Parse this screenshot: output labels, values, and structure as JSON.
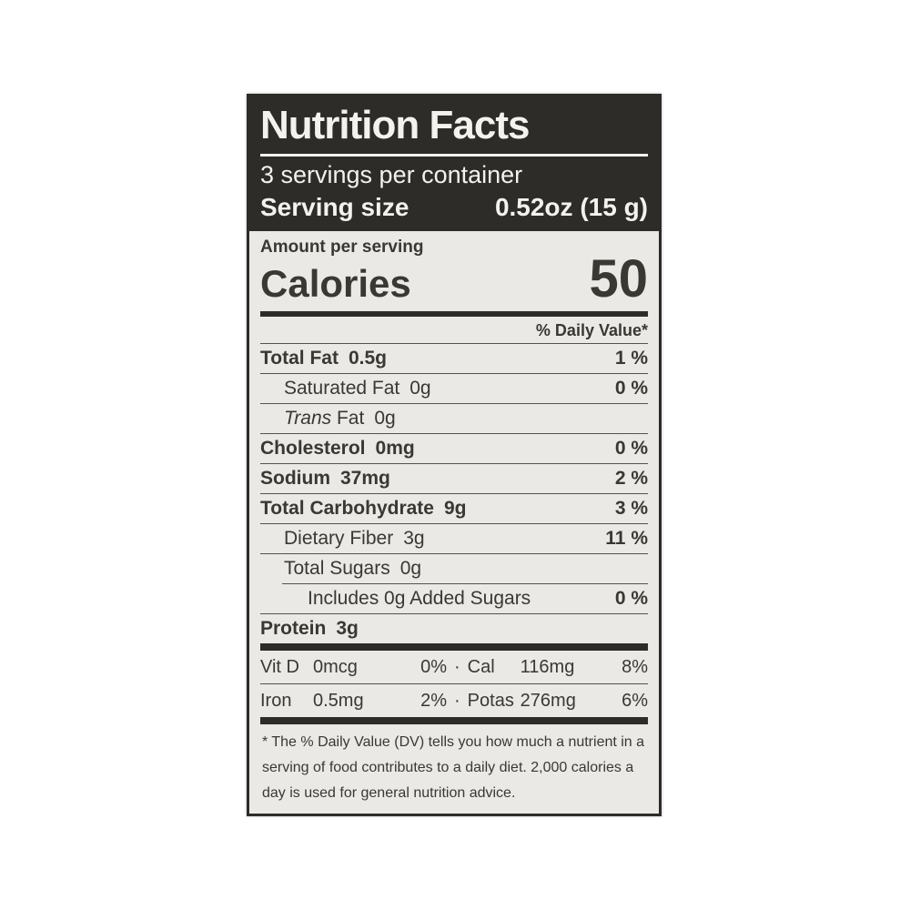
{
  "label": {
    "title": "Nutrition Facts",
    "servings_per_container": "3 servings per container",
    "serving_size_label": "Serving size",
    "serving_size_value": "0.52oz (15 g)",
    "amount_per_serving": "Amount per serving",
    "calories_label": "Calories",
    "calories_value": "50",
    "daily_value_header": "% Daily Value*",
    "rows": [
      {
        "name": "Total Fat",
        "amount": "0.5g",
        "dv": "1 %"
      },
      {
        "name": "Saturated Fat",
        "amount": "0g",
        "dv": "0 %"
      },
      {
        "name_italic": "Trans",
        "name": "Fat",
        "amount": "0g",
        "dv": ""
      },
      {
        "name": "Cholesterol",
        "amount": "0mg",
        "dv": "0 %"
      },
      {
        "name": "Sodium",
        "amount": "37mg",
        "dv": "2 %"
      },
      {
        "name": "Total Carbohydrate",
        "amount": "9g",
        "dv": "3 %"
      },
      {
        "name": "Dietary Fiber",
        "amount": "3g",
        "dv": "11 %"
      },
      {
        "name": "Total Sugars",
        "amount": "0g",
        "dv": ""
      },
      {
        "name": "Includes 0g Added Sugars",
        "amount": "",
        "dv": "0 %"
      },
      {
        "name": "Protein",
        "amount": "3g",
        "dv": ""
      }
    ],
    "bullet": "·",
    "micronutrients": [
      {
        "left": {
          "name": "Vit D",
          "amount": "0mcg",
          "dv": "0%"
        },
        "right": {
          "name": "Cal",
          "amount": "116mg",
          "dv": "8%"
        }
      },
      {
        "left": {
          "name": "Iron",
          "amount": "0.5mg",
          "dv": "2%"
        },
        "right": {
          "name": "Potas",
          "amount": "276mg",
          "dv": "6%"
        }
      }
    ],
    "footnote": "* The % Daily Value (DV) tells you how much a nutrient in a serving of food contributes to a daily diet. 2,000 calories a day is used for general nutrition advice.",
    "colors": {
      "header_bg": "#2d2c29",
      "body_bg": "#eae9e5",
      "text": "#393833"
    }
  }
}
